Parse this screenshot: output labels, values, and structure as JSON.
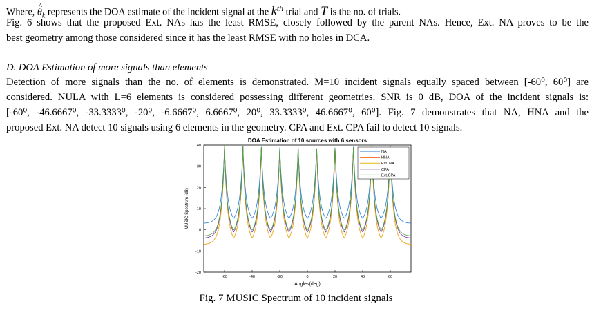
{
  "text": {
    "where_line": {
      "prefix": "Where, ",
      "theta_symbol": "θ",
      "theta_sub": "k",
      "mid": " represents the DOA estimate of the incident signal at the ",
      "k_symbol": "k",
      "k_sup": "th",
      "mid2": " trial and ",
      "t_symbol": "T",
      "suffix": " is the no. of trials."
    },
    "fig6_para": [
      "Fig. 6 shows that the proposed Ext. NAs has the least RMSE, closely followed by the parent NAs. Hence, Ext. NA proves to be the",
      "best geometry among those considered since it has the least RMSE with no holes in DCA."
    ],
    "section_heading": "D.  DOA Estimation of more signals than elements",
    "section_para": [
      "Detection of more signals than the no. of elements is demonstrated. M=10 incident signals equally spaced between [-60⁰, 60⁰] are",
      "considered. NULA with L=6 elements is considered possessing different geometries.  SNR is 0 dB, DOA of the incident signals is:",
      "[-60⁰, -46.6667⁰, -33.3333⁰, -20⁰, -6.6667⁰, 6.6667⁰, 20⁰, 33.3333⁰, 46.6667⁰, 60⁰]. Fig. 7 demonstrates that NA, HNA and the",
      "proposed Ext. NA detect 10 signals using 6 elements in the geometry. CPA and Ext. CPA fail to detect 10 signals."
    ],
    "fig7_caption": "Fig. 7 MUSIC Spectrum of 10 incident signals"
  },
  "chart_data": {
    "type": "line",
    "title": "DOA Estimation of 10 sources with 6 sensors",
    "xlabel": "Angles(deg)",
    "ylabel": "MUSIC Spectrum (dB)",
    "xlim": [
      -75,
      75
    ],
    "ylim": [
      -20,
      40
    ],
    "xticks": [
      -60,
      -40,
      -20,
      0,
      20,
      40,
      60
    ],
    "yticks": [
      -20,
      -10,
      0,
      10,
      20,
      30,
      40
    ],
    "grid": false,
    "legend_position": "top-right",
    "peaks": [
      -60,
      -46.6667,
      -33.3333,
      -20,
      -6.6667,
      6.6667,
      20,
      33.3333,
      46.6667,
      60
    ],
    "series": [
      {
        "name": "NA",
        "color": "#1f77e0",
        "baseline_dB": 3,
        "peak_dB": 40
      },
      {
        "name": "HNA",
        "color": "#ff6a1a",
        "baseline_dB": -7,
        "peak_dB": 40
      },
      {
        "name": "Ext. NA",
        "color": "#e8b81a",
        "baseline_dB": -7,
        "peak_dB": 40
      },
      {
        "name": "CPA",
        "color": "#7b2fa8",
        "baseline_dB": -4,
        "peak_dB": 40
      },
      {
        "name": "Ext.CPA",
        "color": "#4caa3c",
        "baseline_dB": -3,
        "peak_dB": 40
      }
    ]
  }
}
